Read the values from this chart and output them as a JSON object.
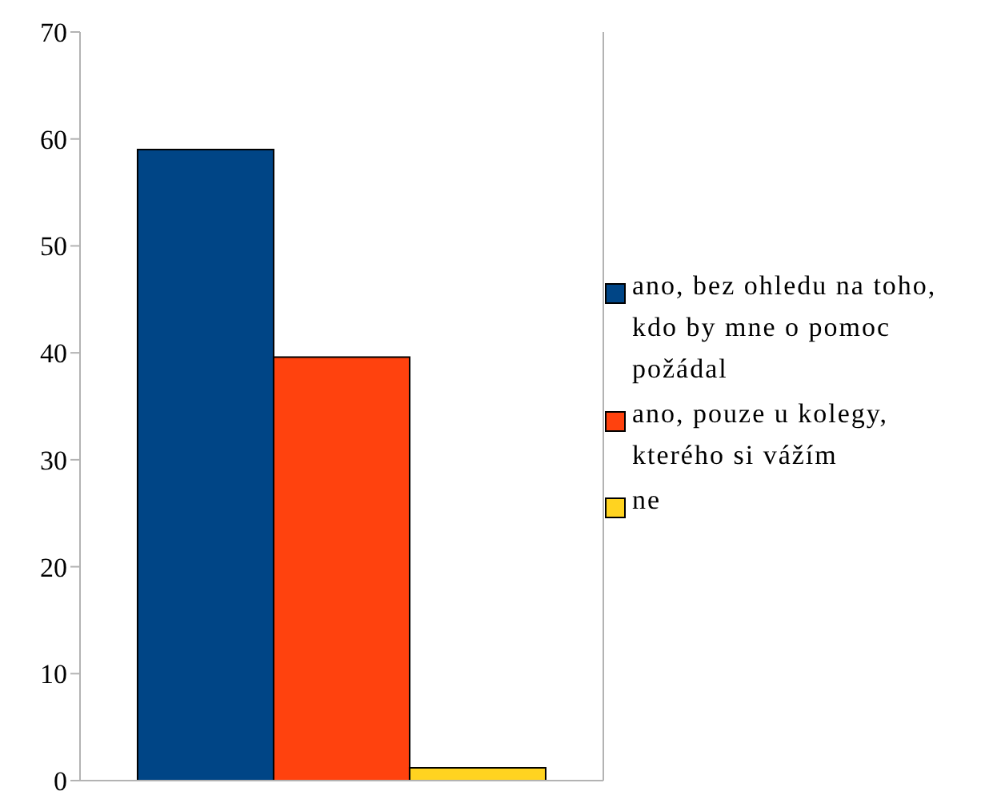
{
  "chart_data": {
    "type": "bar",
    "categories": [
      null
    ],
    "series": [
      {
        "name": "ano, bez ohledu na toho, kdo by mne o pomoc požádal",
        "color": "#004586",
        "values": [
          59
        ]
      },
      {
        "name": "ano, pouze u kolegy, kterého si vážím",
        "color": "#ff420e",
        "values": [
          39.6
        ]
      },
      {
        "name": "ne",
        "color": "#ffd320",
        "values": [
          1.2
        ]
      }
    ],
    "ylim": [
      0,
      70
    ],
    "yticks": [
      0,
      10,
      20,
      30,
      40,
      50,
      60,
      70
    ],
    "grid": false,
    "legend": "right"
  }
}
